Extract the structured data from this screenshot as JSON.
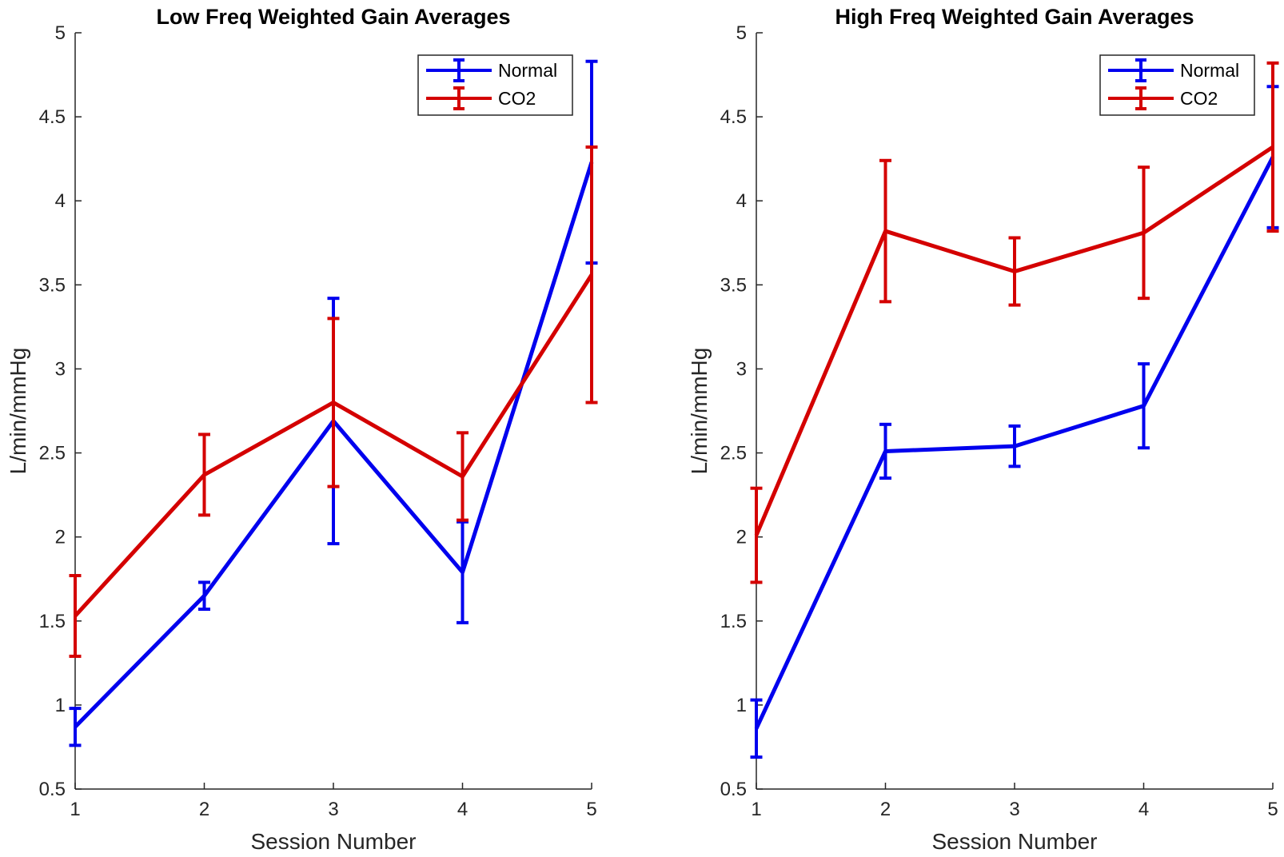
{
  "chart_data": [
    {
      "type": "line",
      "title": "Low Freq Weighted Gain Averages",
      "xlabel": "Session Number",
      "ylabel": "L/min/mmHg",
      "xlim": [
        1,
        5
      ],
      "ylim": [
        0.5,
        5
      ],
      "xticks": [
        "1",
        "2",
        "3",
        "4",
        "5"
      ],
      "yticks": [
        "0.5",
        "1",
        "1.5",
        "2",
        "2.5",
        "3",
        "3.5",
        "4",
        "4.5",
        "5"
      ],
      "x": [
        1,
        2,
        3,
        4,
        5
      ],
      "legend": "top-right",
      "grid": false,
      "series": [
        {
          "name": "Normal",
          "color": "#0000ee",
          "values": [
            0.87,
            1.65,
            2.69,
            1.79,
            4.23
          ],
          "err": [
            0.11,
            0.08,
            0.73,
            0.3,
            0.6
          ]
        },
        {
          "name": "CO2",
          "color": "#d40000",
          "values": [
            1.53,
            2.37,
            2.8,
            2.36,
            3.56
          ],
          "err": [
            0.24,
            0.24,
            0.5,
            0.26,
            0.76
          ]
        }
      ]
    },
    {
      "type": "line",
      "title": "High Freq Weighted Gain Averages",
      "xlabel": "Session Number",
      "ylabel": "L/min/mmHg",
      "xlim": [
        1,
        5
      ],
      "ylim": [
        0.5,
        5
      ],
      "xticks": [
        "1",
        "2",
        "3",
        "4",
        "5"
      ],
      "yticks": [
        "0.5",
        "1",
        "1.5",
        "2",
        "2.5",
        "3",
        "3.5",
        "4",
        "4.5",
        "5"
      ],
      "x": [
        1,
        2,
        3,
        4,
        5
      ],
      "legend": "top-right",
      "grid": false,
      "series": [
        {
          "name": "Normal",
          "color": "#0000ee",
          "values": [
            0.86,
            2.51,
            2.54,
            2.78,
            4.26
          ],
          "err": [
            0.17,
            0.16,
            0.12,
            0.25,
            0.42
          ]
        },
        {
          "name": "CO2",
          "color": "#d40000",
          "values": [
            2.01,
            3.82,
            3.58,
            3.81,
            4.32
          ],
          "err": [
            0.28,
            0.42,
            0.2,
            0.39,
            0.5
          ]
        }
      ]
    }
  ]
}
